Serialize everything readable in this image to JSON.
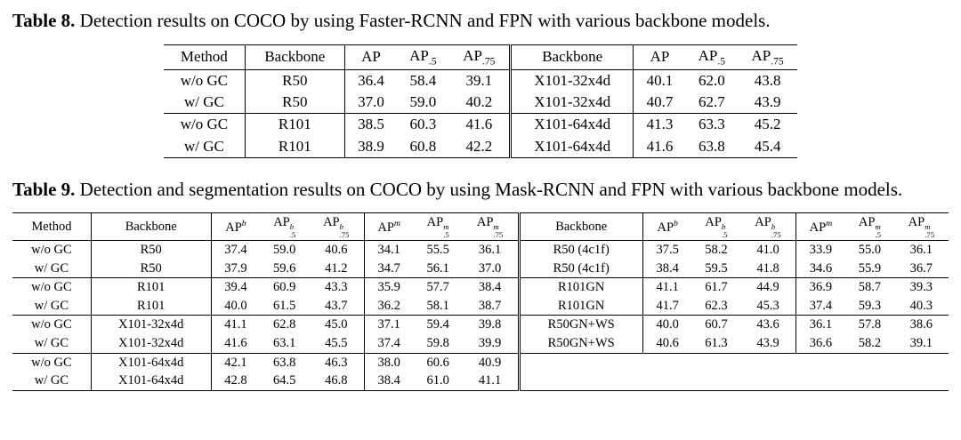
{
  "page": {
    "background_color": "#ffffff",
    "text_color": "#000000"
  },
  "tables": [
    {
      "label": "Table 8.",
      "caption": "Detection results on COCO by using Faster-RCNN and FPN with various backbone models.",
      "header": [
        {
          "t": "Method"
        },
        {
          "t": "Backbone"
        },
        {
          "t": "AP"
        },
        {
          "t": "AP",
          "sub": ".5"
        },
        {
          "t": "AP",
          "sub": ".75"
        },
        {
          "t": "Backbone"
        },
        {
          "t": "AP"
        },
        {
          "t": "AP",
          "sub": ".5"
        },
        {
          "t": "AP",
          "sub": ".75"
        }
      ],
      "rows": [
        [
          "w/o GC",
          "R50",
          "36.4",
          "58.4",
          "39.1",
          "X101-32x4d",
          "40.1",
          "62.0",
          "43.8"
        ],
        [
          "w/ GC",
          "R50",
          "37.0",
          "59.0",
          "40.2",
          "X101-32x4d",
          "40.7",
          "62.7",
          "43.9"
        ],
        [
          "w/o GC",
          "R101",
          "38.5",
          "60.3",
          "41.6",
          "X101-64x4d",
          "41.3",
          "63.3",
          "45.2"
        ],
        [
          "w/ GC",
          "R101",
          "38.9",
          "60.8",
          "42.2",
          "X101-64x4d",
          "41.6",
          "63.8",
          "45.4"
        ]
      ]
    },
    {
      "label": "Table 9.",
      "caption": "Detection and segmentation results on COCO by using Mask-RCNN and FPN with various backbone models.",
      "header": [
        {
          "t": "Method"
        },
        {
          "t": "Backbone"
        },
        {
          "t": "AP",
          "sup": "b"
        },
        {
          "t": "AP",
          "sup": "b",
          "sub": ".5"
        },
        {
          "t": "AP",
          "sup": "b",
          "sub": ".75"
        },
        {
          "t": "AP",
          "sup": "m"
        },
        {
          "t": "AP",
          "sup": "m",
          "sub": ".5"
        },
        {
          "t": "AP",
          "sup": "m",
          "sub": ".75"
        },
        {
          "t": "Backbone"
        },
        {
          "t": "AP",
          "sup": "b"
        },
        {
          "t": "AP",
          "sup": "b",
          "sub": ".5"
        },
        {
          "t": "AP",
          "sup": "b",
          "sub": ".75"
        },
        {
          "t": "AP",
          "sup": "m"
        },
        {
          "t": "AP",
          "sup": "m",
          "sub": ".5"
        },
        {
          "t": "AP",
          "sup": "m",
          "sub": ".75"
        }
      ],
      "rows": [
        [
          "w/o GC",
          "R50",
          "37.4",
          "59.0",
          "40.6",
          "34.1",
          "55.5",
          "36.1",
          "R50 (4c1f)",
          "37.5",
          "58.2",
          "41.0",
          "33.9",
          "55.0",
          "36.1"
        ],
        [
          "w/ GC",
          "R50",
          "37.9",
          "59.6",
          "41.2",
          "34.7",
          "56.1",
          "37.0",
          "R50 (4c1f)",
          "38.4",
          "59.5",
          "41.8",
          "34.6",
          "55.9",
          "36.7"
        ],
        [
          "w/o GC",
          "R101",
          "39.4",
          "60.9",
          "43.3",
          "35.9",
          "57.7",
          "38.4",
          "R101GN",
          "41.1",
          "61.7",
          "44.9",
          "36.9",
          "58.7",
          "39.3"
        ],
        [
          "w/ GC",
          "R101",
          "40.0",
          "61.5",
          "43.7",
          "36.2",
          "58.1",
          "38.7",
          "R101GN",
          "41.7",
          "62.3",
          "45.3",
          "37.4",
          "59.3",
          "40.3"
        ],
        [
          "w/o GC",
          "X101-32x4d",
          "41.1",
          "62.8",
          "45.0",
          "37.1",
          "59.4",
          "39.8",
          "R50GN+WS",
          "40.0",
          "60.7",
          "43.6",
          "36.1",
          "57.8",
          "38.6"
        ],
        [
          "w/ GC",
          "X101-32x4d",
          "41.6",
          "63.1",
          "45.5",
          "37.4",
          "59.8",
          "39.9",
          "R50GN+WS",
          "40.6",
          "61.3",
          "43.9",
          "36.6",
          "58.2",
          "39.1"
        ],
        [
          "w/o GC",
          "X101-64x4d",
          "42.1",
          "63.8",
          "46.3",
          "38.0",
          "60.6",
          "40.9",
          "",
          "",
          "",
          "",
          "",
          "",
          ""
        ],
        [
          "w/ GC",
          "X101-64x4d",
          "42.8",
          "64.5",
          "46.8",
          "38.4",
          "61.0",
          "41.1",
          "",
          "",
          "",
          "",
          "",
          "",
          ""
        ]
      ]
    }
  ]
}
